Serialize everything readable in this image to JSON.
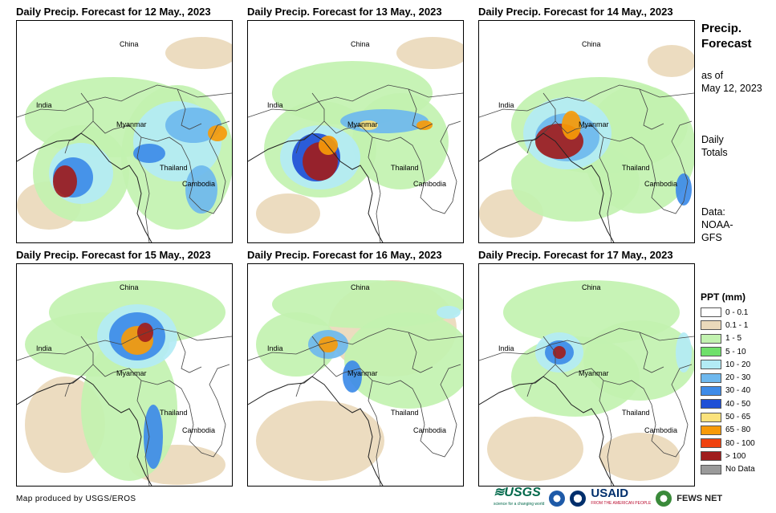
{
  "panels": [
    {
      "title": "Daily Precip. Forecast for 12 May., 2023"
    },
    {
      "title": "Daily Precip. Forecast for 13 May., 2023"
    },
    {
      "title": "Daily Precip. Forecast for 14 May., 2023"
    },
    {
      "title": "Daily Precip. Forecast for 15 May., 2023"
    },
    {
      "title": "Daily Precip. Forecast for 16 May., 2023"
    },
    {
      "title": "Daily Precip. Forecast for 17 May., 2023"
    }
  ],
  "place_labels": {
    "china": "China",
    "india": "India",
    "myanmar": "Myanmar",
    "thailand": "Thailand",
    "cambodia": "Cambodia"
  },
  "sidebar": {
    "title_line1": "Precip.",
    "title_line2": "Forecast",
    "asof_line1": "as of",
    "asof_line2": "May 12, 2023",
    "totals_line1": "Daily",
    "totals_line2": "Totals",
    "data_line1": "Data:",
    "data_line2": "NOAA-",
    "data_line3": "GFS"
  },
  "legend": {
    "title": "PPT (mm)",
    "items": [
      {
        "label": "0 - 0.1",
        "color": "#ffffff"
      },
      {
        "label": "0.1 - 1",
        "color": "#ead9bb"
      },
      {
        "label": "1 - 5",
        "color": "#c2f2b0"
      },
      {
        "label": "5 - 10",
        "color": "#6fe06a"
      },
      {
        "label": "10 - 20",
        "color": "#b3ebf5"
      },
      {
        "label": "20 - 30",
        "color": "#6eb8ee"
      },
      {
        "label": "30 - 40",
        "color": "#3d8be8"
      },
      {
        "label": "40 - 50",
        "color": "#1f4fd6"
      },
      {
        "label": "50 - 65",
        "color": "#fbe27c"
      },
      {
        "label": "65 - 80",
        "color": "#f79a08"
      },
      {
        "label": "80 - 100",
        "color": "#f0420f"
      },
      {
        "label": "> 100",
        "color": "#a01d1d"
      },
      {
        "label": "No Data",
        "color": "#9a9a9a"
      }
    ]
  },
  "footer": {
    "credit": "Map produced by USGS/EROS",
    "logo_usgs": "≋USGS",
    "logo_usgs_tag": "science for a changing world",
    "logo_usaid": "USAID",
    "logo_usaid_tag": "FROM THE AMERICAN PEOPLE",
    "logo_fews": "FEWS NET"
  }
}
